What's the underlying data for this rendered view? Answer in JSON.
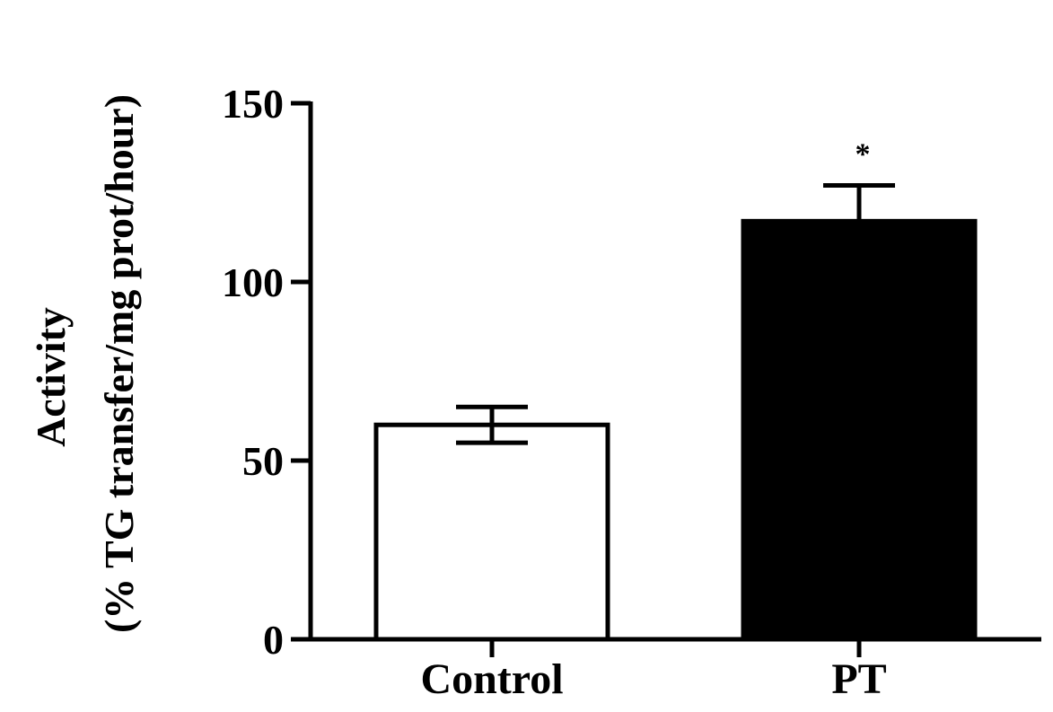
{
  "chart_data": {
    "type": "bar",
    "title": "",
    "xlabel": "",
    "ylabel": "Activity",
    "ylabel_line2": "(% TG transfer/mg prot/hour)",
    "categories": [
      "Control",
      "PT"
    ],
    "values": [
      60,
      117
    ],
    "errors": [
      5,
      10
    ],
    "bar_colors": [
      "#ffffff",
      "#000000"
    ],
    "bar_edge_color": "#000000",
    "annotations": [
      "",
      "*"
    ],
    "ylim": [
      0,
      150
    ],
    "yticks": [
      0,
      50,
      100,
      150
    ],
    "ytick_labels": [
      "0",
      "50",
      "100",
      "150"
    ],
    "grid": false,
    "legend": "none"
  }
}
